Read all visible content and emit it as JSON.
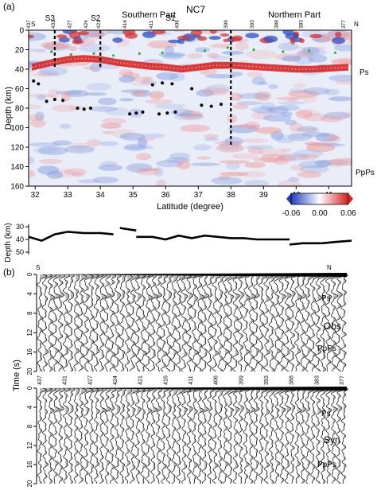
{
  "panel_a": {
    "label": "(a)",
    "title": "NC7",
    "region_south": "Southern Part",
    "region_north": "Northern Part",
    "dir_s": "S",
    "dir_n": "N",
    "ylabel": "Depth (km)",
    "xlabel": "Latitude (degree)",
    "phase_ps": "Ps",
    "phase_ppps": "PpPs",
    "shear_zones": [
      {
        "label": "S3",
        "lat": 32.6
      },
      {
        "label": "S2",
        "lat": 34.0
      },
      {
        "label": "S1",
        "lat": 36.3
      }
    ],
    "dashed_lines_lat": [
      32.6,
      34.0,
      38.0
    ],
    "dashed_line_bottom_km": [
      40,
      40,
      120
    ],
    "station_labels": [
      "437",
      "431",
      "427",
      "424",
      "421",
      "416",
      "411",
      "406",
      "399",
      "393",
      "388",
      "383",
      "377"
    ],
    "station_lats": [
      31.85,
      32.6,
      33.1,
      33.6,
      34.0,
      34.8,
      35.6,
      36.4,
      37.9,
      38.7,
      39.45,
      40.2,
      41.5
    ],
    "colorbar": {
      "ticks": [
        "-0.06",
        "0.00",
        "0.06"
      ],
      "colors": [
        "#1f3fbf",
        "#ffffff",
        "#d61f1f"
      ]
    }
  },
  "moho_profile": {
    "ylabel": "Depth (km)",
    "yticks": [
      "30",
      "40",
      "50"
    ]
  },
  "panel_b": {
    "label": "(b)",
    "dir_s": "S",
    "dir_n": "N",
    "ylabel": "Time (s)",
    "obs_label": "Obs",
    "syn_label": "Syn",
    "phase_ps": "Ps",
    "phase_ppps": "PpPs",
    "time_ticks": [
      "0",
      "4",
      "8",
      "12",
      "16",
      "20"
    ],
    "station_labels": [
      "437",
      "431",
      "427",
      "424",
      "421",
      "416",
      "411",
      "406",
      "399",
      "393",
      "388",
      "383",
      "377"
    ]
  },
  "chart_data": [
    {
      "type": "heatmap",
      "title": "NC7",
      "xlabel": "Latitude (degree)",
      "ylabel": "Depth (km)",
      "xlim": [
        31.8,
        41.7
      ],
      "ylim": [
        160,
        0
      ],
      "xticks": [
        32,
        33,
        34,
        35,
        36,
        37,
        38,
        39,
        40,
        41
      ],
      "yticks": [
        0,
        20,
        40,
        60,
        80,
        100,
        120,
        140,
        160
      ],
      "color_range": [
        -0.06,
        0.06
      ],
      "ps_interface": {
        "lat": [
          31.9,
          32.4,
          33.0,
          33.5,
          34.0,
          34.5,
          35.0,
          35.5,
          36.0,
          36.5,
          37.0,
          37.5,
          38.0,
          38.5,
          39.0,
          39.5,
          40.0,
          40.5,
          41.0,
          41.6
        ],
        "depth": [
          38,
          34,
          30,
          29,
          30,
          33,
          35,
          37,
          38,
          40,
          38,
          36,
          36,
          37,
          38,
          39,
          40,
          40,
          39,
          38
        ]
      },
      "deep_points": {
        "lat": [
          31.95,
          32.1,
          32.35,
          32.6,
          32.85,
          33.3,
          33.5,
          33.7,
          34.9,
          35.1,
          35.3,
          35.8,
          36.05,
          36.3,
          35.6,
          35.9,
          36.2,
          36.8,
          37.1,
          37.4,
          37.7
        ],
        "depth": [
          52,
          55,
          73,
          71,
          72,
          80,
          81,
          80,
          86,
          85,
          84,
          86,
          85,
          84,
          56,
          54,
          55,
          60,
          77,
          78,
          76
        ]
      },
      "shallow_points_green_lat": [
        32.5,
        33.1,
        33.8,
        34.4,
        35.2,
        35.9,
        37.2,
        37.9,
        38.7,
        39.6,
        40.4,
        41.2
      ],
      "shallow_points_green_depth": [
        22,
        25,
        24,
        26,
        24,
        23,
        21,
        18,
        20,
        22,
        21,
        23
      ]
    },
    {
      "type": "line",
      "ylabel": "Depth (km)",
      "ylim": [
        50,
        30
      ],
      "segments": [
        {
          "lat": [
            31.8,
            32.2,
            32.6,
            33.0,
            33.5,
            34.0,
            34.4
          ],
          "depth": [
            38,
            41,
            36,
            34,
            35,
            35,
            36
          ]
        },
        {
          "lat": [
            34.6,
            35.1
          ],
          "depth": [
            31,
            33
          ]
        },
        {
          "lat": [
            35.1,
            35.6,
            36.0,
            36.4,
            36.8,
            37.2,
            37.6,
            38.0,
            38.4,
            38.8,
            39.2,
            39.8
          ],
          "depth": [
            38,
            38,
            40,
            37,
            39,
            37,
            38,
            39,
            39,
            40,
            40,
            40
          ]
        },
        {
          "lat": [
            39.8,
            40.2,
            40.8,
            41.2,
            41.7
          ],
          "depth": [
            44,
            43,
            43,
            42,
            41
          ]
        }
      ]
    },
    {
      "type": "line",
      "title": "Obs",
      "ylabel": "Time (s)",
      "ylim": [
        20,
        0
      ],
      "traces": 60,
      "ps_time": 4.5,
      "ppps_time": 16
    },
    {
      "type": "line",
      "title": "Syn",
      "ylabel": "Time (s)",
      "ylim": [
        20,
        0
      ],
      "traces": 60,
      "ps_time": 4.5,
      "ppps_time": 16
    }
  ]
}
